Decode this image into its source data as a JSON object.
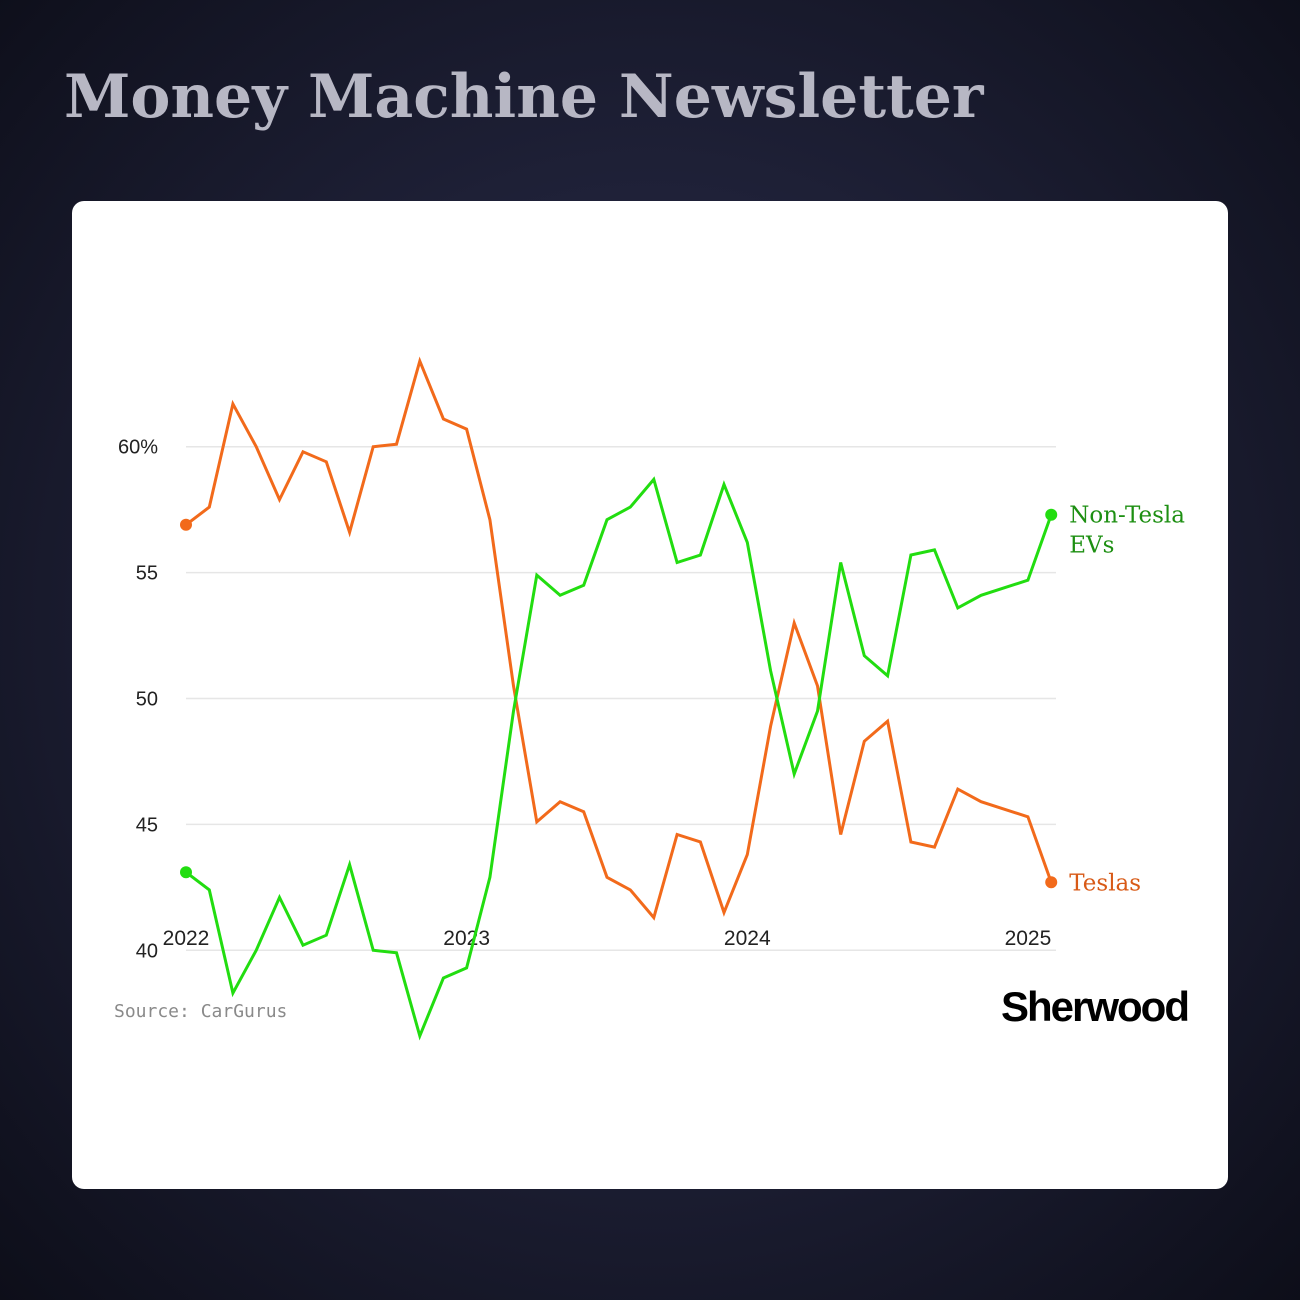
{
  "header": {
    "title": "Money Machine Newsletter"
  },
  "footer": {
    "source": "Source: CarGurus",
    "brand": "Sherwood"
  },
  "colors": {
    "teslas": "#f26a1b",
    "non_tesla": "#22dd10",
    "grid": "#e6e6e6",
    "non_tesla_label": "#1d8f12",
    "teslas_label": "#d85a17"
  },
  "chart_data": {
    "type": "line",
    "title": "",
    "xlabel": "",
    "ylabel": "",
    "x_ticks": [
      "2022",
      "2023",
      "2024",
      "2025"
    ],
    "y_ticks": [
      "60%",
      "55",
      "50",
      "45",
      "40"
    ],
    "y_tick_values": [
      60,
      55,
      50,
      45,
      40
    ],
    "ylim": [
      36,
      64
    ],
    "xlim": [
      2022.0,
      2025.1
    ],
    "grid": true,
    "series": [
      {
        "name": "Teslas",
        "label_lines": [
          "Teslas"
        ],
        "color": "#f26a1b",
        "x": [
          2022.0,
          2022.083,
          2022.167,
          2022.25,
          2022.333,
          2022.417,
          2022.5,
          2022.583,
          2022.667,
          2022.75,
          2022.833,
          2022.917,
          2023.0,
          2023.083,
          2023.167,
          2023.25,
          2023.333,
          2023.417,
          2023.5,
          2023.583,
          2023.667,
          2023.75,
          2023.833,
          2023.917,
          2024.0,
          2024.083,
          2024.167,
          2024.25,
          2024.333,
          2024.417,
          2024.5,
          2024.583,
          2024.667,
          2024.75,
          2024.833,
          2024.917,
          2025.0,
          2025.083
        ],
        "values": [
          56.9,
          57.6,
          61.7,
          60.0,
          57.9,
          59.8,
          59.4,
          56.6,
          60.0,
          60.1,
          63.4,
          61.1,
          60.7,
          57.1,
          50.5,
          45.1,
          45.9,
          45.5,
          42.9,
          42.4,
          41.3,
          44.6,
          44.3,
          41.5,
          43.8,
          48.9,
          53.0,
          50.5,
          44.6,
          48.3,
          49.1,
          44.3,
          44.1,
          46.4,
          45.9,
          45.6,
          45.3,
          42.7
        ]
      },
      {
        "name": "Non-Tesla EVs",
        "label_lines": [
          "Non-Tesla",
          "EVs"
        ],
        "color": "#22dd10",
        "x": [
          2022.0,
          2022.083,
          2022.167,
          2022.25,
          2022.333,
          2022.417,
          2022.5,
          2022.583,
          2022.667,
          2022.75,
          2022.833,
          2022.917,
          2023.0,
          2023.083,
          2023.167,
          2023.25,
          2023.333,
          2023.417,
          2023.5,
          2023.583,
          2023.667,
          2023.75,
          2023.833,
          2023.917,
          2024.0,
          2024.083,
          2024.167,
          2024.25,
          2024.333,
          2024.417,
          2024.5,
          2024.583,
          2024.667,
          2024.75,
          2024.833,
          2024.917,
          2025.0,
          2025.083
        ],
        "values": [
          43.1,
          42.4,
          38.3,
          40.0,
          42.1,
          40.2,
          40.6,
          43.4,
          40.0,
          39.9,
          36.6,
          38.9,
          39.3,
          42.9,
          49.5,
          54.9,
          54.1,
          54.5,
          57.1,
          57.6,
          58.7,
          55.4,
          55.7,
          58.5,
          56.2,
          51.1,
          47.0,
          49.5,
          55.4,
          51.7,
          50.9,
          55.7,
          55.9,
          53.6,
          54.1,
          54.4,
          54.7,
          57.3
        ]
      }
    ]
  }
}
